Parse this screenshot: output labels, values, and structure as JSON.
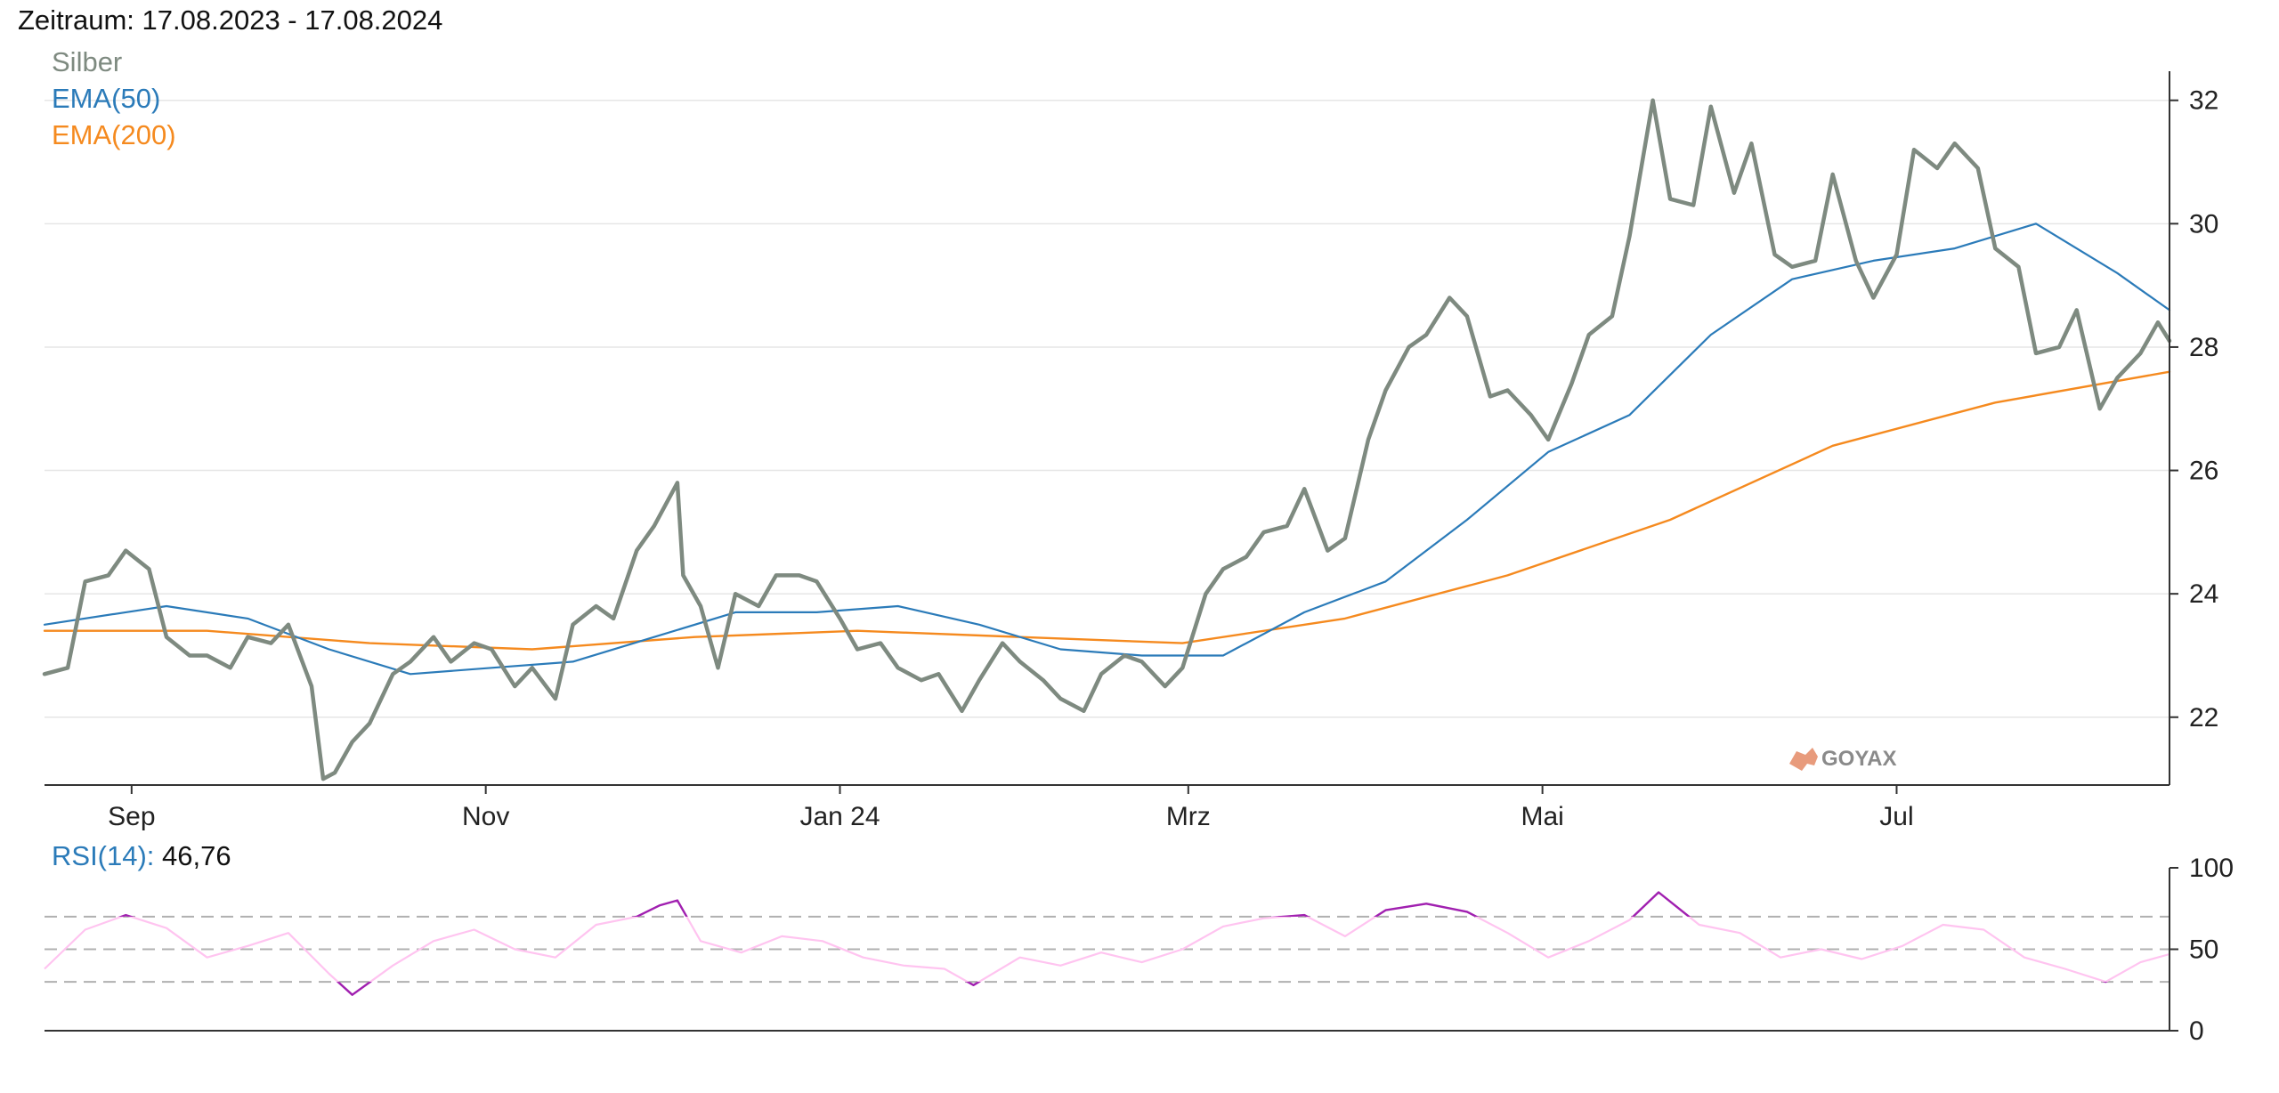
{
  "header": {
    "period_label": "Zeitraum: 17.08.2023 - 17.08.2024"
  },
  "watermark": "GOYAX",
  "colors": {
    "price": "#7e8a80",
    "ema50": "#2b7bb9",
    "ema200": "#f58a1f",
    "rsi_normal": "#ffc4f0",
    "rsi_extreme": "#a020b0",
    "grid": "#e6e6e6",
    "axis": "#333333",
    "rsi_ref": "#b0b0b0",
    "watermark": "#e07a50"
  },
  "chart_data": [
    {
      "type": "line",
      "x_range": [
        "2023-08-17",
        "2024-08-17"
      ],
      "xticks": [
        "Sep",
        "Nov",
        "Jan 24",
        "Mrz",
        "Mai",
        "Jul"
      ],
      "ylim": [
        20.9,
        32.4
      ],
      "yticks": [
        "22",
        "24",
        "26",
        "28",
        "30",
        "32"
      ],
      "grid": true,
      "legend_position": "top-left",
      "series": [
        {
          "name": "Silber",
          "points": [
            [
              "2023-08-17",
              22.7
            ],
            [
              "2023-08-21",
              22.8
            ],
            [
              "2023-08-24",
              24.2
            ],
            [
              "2023-08-28",
              24.3
            ],
            [
              "2023-08-31",
              24.7
            ],
            [
              "2023-09-04",
              24.4
            ],
            [
              "2023-09-07",
              23.3
            ],
            [
              "2023-09-11",
              23.0
            ],
            [
              "2023-09-14",
              23.0
            ],
            [
              "2023-09-18",
              22.8
            ],
            [
              "2023-09-21",
              23.3
            ],
            [
              "2023-09-25",
              23.2
            ],
            [
              "2023-09-28",
              23.5
            ],
            [
              "2023-10-02",
              22.5
            ],
            [
              "2023-10-04",
              21.0
            ],
            [
              "2023-10-06",
              21.1
            ],
            [
              "2023-10-09",
              21.6
            ],
            [
              "2023-10-12",
              21.9
            ],
            [
              "2023-10-16",
              22.7
            ],
            [
              "2023-10-19",
              22.9
            ],
            [
              "2023-10-23",
              23.3
            ],
            [
              "2023-10-26",
              22.9
            ],
            [
              "2023-10-30",
              23.2
            ],
            [
              "2023-11-02",
              23.1
            ],
            [
              "2023-11-06",
              22.5
            ],
            [
              "2023-11-09",
              22.8
            ],
            [
              "2023-11-13",
              22.3
            ],
            [
              "2023-11-16",
              23.5
            ],
            [
              "2023-11-20",
              23.8
            ],
            [
              "2023-11-23",
              23.6
            ],
            [
              "2023-11-27",
              24.7
            ],
            [
              "2023-11-30",
              25.1
            ],
            [
              "2023-12-04",
              25.8
            ],
            [
              "2023-12-05",
              24.3
            ],
            [
              "2023-12-08",
              23.8
            ],
            [
              "2023-12-11",
              22.8
            ],
            [
              "2023-12-14",
              24.0
            ],
            [
              "2023-12-18",
              23.8
            ],
            [
              "2023-12-21",
              24.3
            ],
            [
              "2023-12-25",
              24.3
            ],
            [
              "2023-12-28",
              24.2
            ],
            [
              "2024-01-01",
              23.6
            ],
            [
              "2024-01-04",
              23.1
            ],
            [
              "2024-01-08",
              23.2
            ],
            [
              "2024-01-11",
              22.8
            ],
            [
              "2024-01-15",
              22.6
            ],
            [
              "2024-01-18",
              22.7
            ],
            [
              "2024-01-22",
              22.1
            ],
            [
              "2024-01-25",
              22.6
            ],
            [
              "2024-01-29",
              23.2
            ],
            [
              "2024-02-01",
              22.9
            ],
            [
              "2024-02-05",
              22.6
            ],
            [
              "2024-02-08",
              22.3
            ],
            [
              "2024-02-12",
              22.1
            ],
            [
              "2024-02-15",
              22.7
            ],
            [
              "2024-02-19",
              23.0
            ],
            [
              "2024-02-22",
              22.9
            ],
            [
              "2024-02-26",
              22.5
            ],
            [
              "2024-02-29",
              22.8
            ],
            [
              "2024-03-04",
              24.0
            ],
            [
              "2024-03-07",
              24.4
            ],
            [
              "2024-03-11",
              24.6
            ],
            [
              "2024-03-14",
              25.0
            ],
            [
              "2024-03-18",
              25.1
            ],
            [
              "2024-03-21",
              25.7
            ],
            [
              "2024-03-25",
              24.7
            ],
            [
              "2024-03-28",
              24.9
            ],
            [
              "2024-04-01",
              26.5
            ],
            [
              "2024-04-04",
              27.3
            ],
            [
              "2024-04-08",
              28.0
            ],
            [
              "2024-04-11",
              28.2
            ],
            [
              "2024-04-15",
              28.8
            ],
            [
              "2024-04-18",
              28.5
            ],
            [
              "2024-04-22",
              27.2
            ],
            [
              "2024-04-25",
              27.3
            ],
            [
              "2024-04-29",
              26.9
            ],
            [
              "2024-05-02",
              26.5
            ],
            [
              "2024-05-06",
              27.4
            ],
            [
              "2024-05-09",
              28.2
            ],
            [
              "2024-05-13",
              28.5
            ],
            [
              "2024-05-16",
              29.8
            ],
            [
              "2024-05-20",
              32.0
            ],
            [
              "2024-05-23",
              30.4
            ],
            [
              "2024-05-27",
              30.3
            ],
            [
              "2024-05-30",
              31.9
            ],
            [
              "2024-06-03",
              30.5
            ],
            [
              "2024-06-06",
              31.3
            ],
            [
              "2024-06-10",
              29.5
            ],
            [
              "2024-06-13",
              29.3
            ],
            [
              "2024-06-17",
              29.4
            ],
            [
              "2024-06-20",
              30.8
            ],
            [
              "2024-06-24",
              29.4
            ],
            [
              "2024-06-27",
              28.8
            ],
            [
              "2024-07-01",
              29.5
            ],
            [
              "2024-07-04",
              31.2
            ],
            [
              "2024-07-08",
              30.9
            ],
            [
              "2024-07-11",
              31.3
            ],
            [
              "2024-07-15",
              30.9
            ],
            [
              "2024-07-18",
              29.6
            ],
            [
              "2024-07-22",
              29.3
            ],
            [
              "2024-07-25",
              27.9
            ],
            [
              "2024-07-29",
              28.0
            ],
            [
              "2024-08-01",
              28.6
            ],
            [
              "2024-08-05",
              27.0
            ],
            [
              "2024-08-08",
              27.5
            ],
            [
              "2024-08-12",
              27.9
            ],
            [
              "2024-08-15",
              28.4
            ],
            [
              "2024-08-17",
              28.1
            ]
          ]
        },
        {
          "name": "EMA(50)",
          "points": [
            [
              "2023-08-17",
              23.5
            ],
            [
              "2023-08-31",
              23.7
            ],
            [
              "2023-09-07",
              23.8
            ],
            [
              "2023-09-21",
              23.6
            ],
            [
              "2023-10-05",
              23.1
            ],
            [
              "2023-10-19",
              22.7
            ],
            [
              "2023-11-02",
              22.8
            ],
            [
              "2023-11-16",
              22.9
            ],
            [
              "2023-11-30",
              23.3
            ],
            [
              "2023-12-14",
              23.7
            ],
            [
              "2023-12-28",
              23.7
            ],
            [
              "2024-01-11",
              23.8
            ],
            [
              "2024-01-25",
              23.5
            ],
            [
              "2024-02-08",
              23.1
            ],
            [
              "2024-02-22",
              23.0
            ],
            [
              "2024-03-07",
              23.0
            ],
            [
              "2024-03-21",
              23.7
            ],
            [
              "2024-04-04",
              24.2
            ],
            [
              "2024-04-18",
              25.2
            ],
            [
              "2024-05-02",
              26.3
            ],
            [
              "2024-05-16",
              26.9
            ],
            [
              "2024-05-30",
              28.2
            ],
            [
              "2024-06-13",
              29.1
            ],
            [
              "2024-06-27",
              29.4
            ],
            [
              "2024-07-11",
              29.6
            ],
            [
              "2024-07-25",
              30.0
            ],
            [
              "2024-08-08",
              29.2
            ],
            [
              "2024-08-17",
              28.6
            ]
          ]
        },
        {
          "name": "EMA(200)",
          "points": [
            [
              "2023-08-17",
              23.4
            ],
            [
              "2023-09-14",
              23.4
            ],
            [
              "2023-10-12",
              23.2
            ],
            [
              "2023-11-09",
              23.1
            ],
            [
              "2023-12-07",
              23.3
            ],
            [
              "2024-01-04",
              23.4
            ],
            [
              "2024-02-01",
              23.3
            ],
            [
              "2024-02-29",
              23.2
            ],
            [
              "2024-03-28",
              23.6
            ],
            [
              "2024-04-25",
              24.3
            ],
            [
              "2024-05-23",
              25.2
            ],
            [
              "2024-06-20",
              26.4
            ],
            [
              "2024-07-18",
              27.1
            ],
            [
              "2024-08-17",
              27.6
            ]
          ]
        }
      ]
    },
    {
      "type": "line",
      "title": "RSI(14)",
      "current_value": "46,76",
      "ylim": [
        0,
        100
      ],
      "yticks": [
        "0",
        "50",
        "100"
      ],
      "reference_lines": [
        30,
        50,
        70
      ],
      "series": [
        {
          "name": "RSI(14)",
          "points": [
            [
              "2023-08-17",
              38
            ],
            [
              "2023-08-24",
              62
            ],
            [
              "2023-08-31",
              71
            ],
            [
              "2023-09-07",
              63
            ],
            [
              "2023-09-14",
              45
            ],
            [
              "2023-09-21",
              52
            ],
            [
              "2023-09-28",
              60
            ],
            [
              "2023-10-05",
              35
            ],
            [
              "2023-10-09",
              22
            ],
            [
              "2023-10-16",
              40
            ],
            [
              "2023-10-23",
              55
            ],
            [
              "2023-10-30",
              62
            ],
            [
              "2023-11-06",
              50
            ],
            [
              "2023-11-13",
              45
            ],
            [
              "2023-11-20",
              65
            ],
            [
              "2023-11-27",
              70
            ],
            [
              "2023-12-01",
              77
            ],
            [
              "2023-12-04",
              80
            ],
            [
              "2023-12-08",
              55
            ],
            [
              "2023-12-15",
              48
            ],
            [
              "2023-12-22",
              58
            ],
            [
              "2023-12-29",
              55
            ],
            [
              "2024-01-05",
              45
            ],
            [
              "2024-01-12",
              40
            ],
            [
              "2024-01-19",
              38
            ],
            [
              "2024-01-24",
              28
            ],
            [
              "2024-02-01",
              45
            ],
            [
              "2024-02-08",
              40
            ],
            [
              "2024-02-15",
              48
            ],
            [
              "2024-02-22",
              42
            ],
            [
              "2024-02-29",
              50
            ],
            [
              "2024-03-07",
              64
            ],
            [
              "2024-03-14",
              69
            ],
            [
              "2024-03-21",
              71
            ],
            [
              "2024-03-28",
              58
            ],
            [
              "2024-04-04",
              74
            ],
            [
              "2024-04-11",
              78
            ],
            [
              "2024-04-18",
              73
            ],
            [
              "2024-04-25",
              60
            ],
            [
              "2024-05-02",
              45
            ],
            [
              "2024-05-09",
              55
            ],
            [
              "2024-05-16",
              68
            ],
            [
              "2024-05-21",
              85
            ],
            [
              "2024-05-28",
              65
            ],
            [
              "2024-06-04",
              60
            ],
            [
              "2024-06-11",
              45
            ],
            [
              "2024-06-18",
              50
            ],
            [
              "2024-06-25",
              44
            ],
            [
              "2024-07-02",
              52
            ],
            [
              "2024-07-09",
              65
            ],
            [
              "2024-07-16",
              62
            ],
            [
              "2024-07-23",
              45
            ],
            [
              "2024-07-30",
              38
            ],
            [
              "2024-08-06",
              30
            ],
            [
              "2024-08-12",
              42
            ],
            [
              "2024-08-17",
              47
            ]
          ]
        }
      ]
    }
  ]
}
